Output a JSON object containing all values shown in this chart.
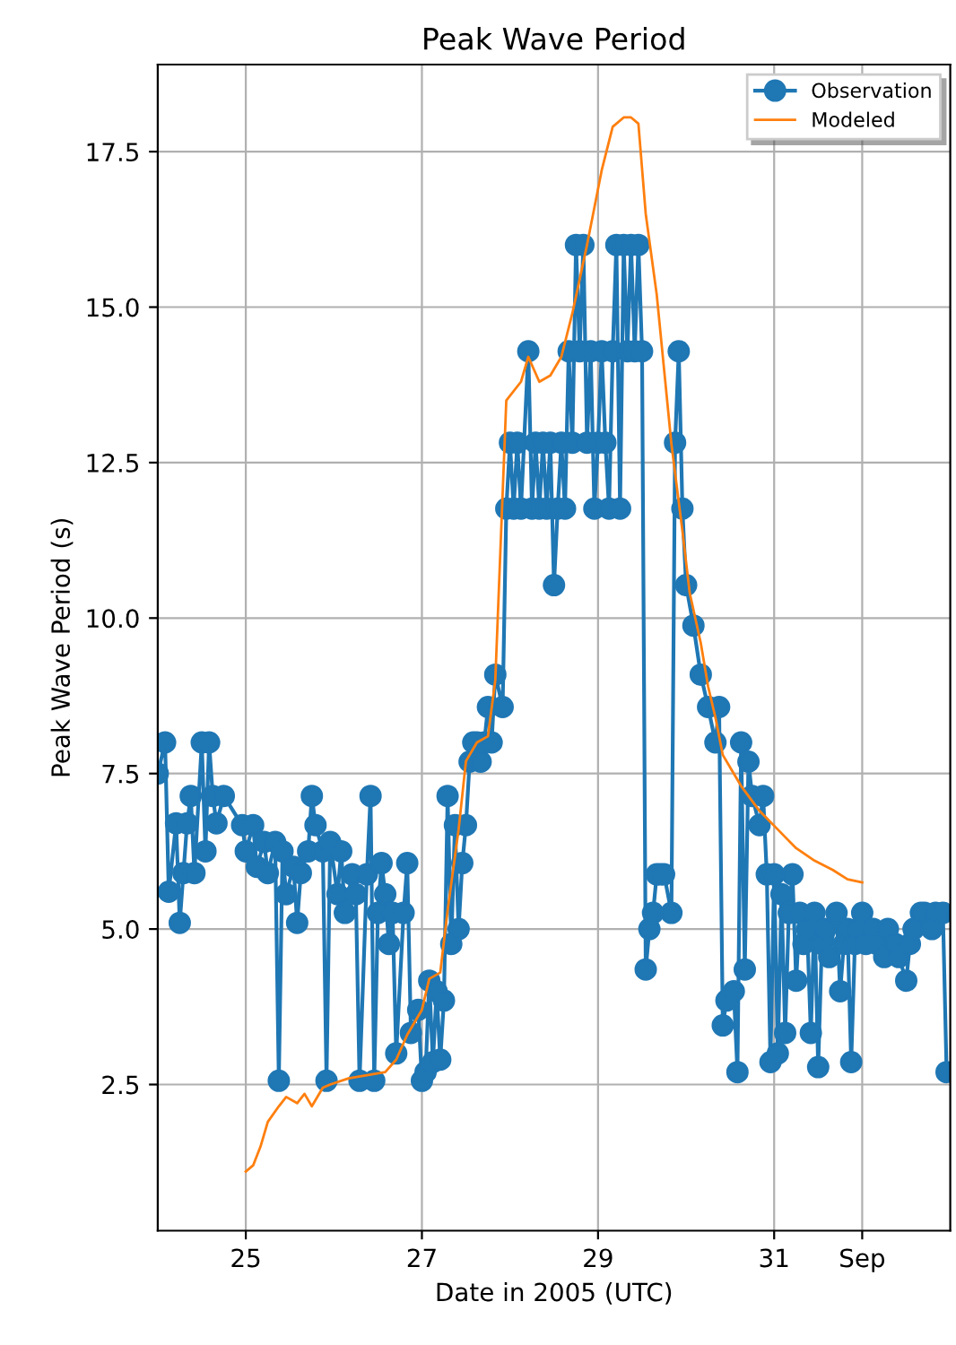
{
  "chart_data": {
    "type": "line",
    "title": "Peak Wave Period",
    "xlabel": "Date in 2005 (UTC)",
    "ylabel": "Peak Wave Period (s)",
    "xlim": [
      "2005-08-24T00:00",
      "2005-09-02T00:00"
    ],
    "ylim": [
      0.15,
      18.9
    ],
    "xticks": [
      {
        "value": "2005-08-25",
        "label": "25"
      },
      {
        "value": "2005-08-27",
        "label": "27"
      },
      {
        "value": "2005-08-29",
        "label": "29"
      },
      {
        "value": "2005-08-31",
        "label": "31"
      },
      {
        "value": "2005-09-01",
        "label": "Sep"
      }
    ],
    "yticks": [
      2.5,
      {
        "value": 5,
        "label": "5.0"
      },
      7.5,
      {
        "value": 10,
        "label": "10.0"
      },
      12.5,
      {
        "value": 15,
        "label": "15.0"
      },
      17.5
    ],
    "grid": true,
    "legend": "top right",
    "series": [
      {
        "name": "Observation",
        "color": "#1f77b4",
        "marker": "circle",
        "line_style": "solid",
        "x": [
          "2005-08-24T00:00",
          "2005-08-24T02:00",
          "2005-08-24T03:00",
          "2005-08-24T05:00",
          "2005-08-24T06:00",
          "2005-08-24T07:00",
          "2005-08-24T08:00",
          "2005-08-24T09:00",
          "2005-08-24T10:00",
          "2005-08-24T12:00",
          "2005-08-24T13:00",
          "2005-08-24T14:00",
          "2005-08-24T15:00",
          "2005-08-24T16:00",
          "2005-08-24T18:00",
          "2005-08-24T23:00",
          "2005-08-25T00:00",
          "2005-08-25T02:00",
          "2005-08-25T03:00",
          "2005-08-25T05:00",
          "2005-08-25T06:00",
          "2005-08-25T08:00",
          "2005-08-25T09:00",
          "2005-08-25T10:00",
          "2005-08-25T11:00",
          "2005-08-25T13:00",
          "2005-08-25T14:00",
          "2005-08-25T15:00",
          "2005-08-25T17:00",
          "2005-08-25T18:00",
          "2005-08-25T19:00",
          "2005-08-25T21:00",
          "2005-08-25T22:00",
          "2005-08-25T23:00",
          "2005-08-26T01:00",
          "2005-08-26T02:00",
          "2005-08-26T03:00",
          "2005-08-26T05:00",
          "2005-08-26T06:00",
          "2005-08-26T07:00",
          "2005-08-26T09:00",
          "2005-08-26T10:00",
          "2005-08-26T11:00",
          "2005-08-26T12:00",
          "2005-08-26T13:00",
          "2005-08-26T14:00",
          "2005-08-26T15:00",
          "2005-08-26T16:00",
          "2005-08-26T17:00",
          "2005-08-26T19:00",
          "2005-08-26T20:00",
          "2005-08-26T21:00",
          "2005-08-26T23:00",
          "2005-08-27T00:00",
          "2005-08-27T01:00",
          "2005-08-27T02:00",
          "2005-08-27T03:00",
          "2005-08-27T04:00",
          "2005-08-27T05:00",
          "2005-08-27T06:00",
          "2005-08-27T07:00",
          "2005-08-27T08:00",
          "2005-08-27T09:00",
          "2005-08-27T10:00",
          "2005-08-27T11:00",
          "2005-08-27T12:00",
          "2005-08-27T13:00",
          "2005-08-27T14:00",
          "2005-08-27T15:00",
          "2005-08-27T16:00",
          "2005-08-27T17:00",
          "2005-08-27T18:00",
          "2005-08-27T19:00",
          "2005-08-27T20:00",
          "2005-08-27T22:00",
          "2005-08-27T23:00",
          "2005-08-28T00:00",
          "2005-08-28T01:00",
          "2005-08-28T02:00",
          "2005-08-28T03:00",
          "2005-08-28T05:00",
          "2005-08-28T06:00",
          "2005-08-28T07:00",
          "2005-08-28T08:00",
          "2005-08-28T09:00",
          "2005-08-28T10:00",
          "2005-08-28T11:00",
          "2005-08-28T12:00",
          "2005-08-28T13:00",
          "2005-08-28T14:00",
          "2005-08-28T15:00",
          "2005-08-28T16:00",
          "2005-08-28T17:00",
          "2005-08-28T18:00",
          "2005-08-28T19:00",
          "2005-08-28T20:00",
          "2005-08-28T21:00",
          "2005-08-28T22:00",
          "2005-08-28T23:00",
          "2005-08-29T00:00",
          "2005-08-29T01:00",
          "2005-08-29T02:00",
          "2005-08-29T03:00",
          "2005-08-29T04:00",
          "2005-08-29T05:00",
          "2005-08-29T06:00",
          "2005-08-29T07:00",
          "2005-08-29T08:00",
          "2005-08-29T09:00",
          "2005-08-29T10:00",
          "2005-08-29T11:00",
          "2005-08-29T12:00",
          "2005-08-29T13:00",
          "2005-08-29T14:00",
          "2005-08-29T15:00",
          "2005-08-29T16:00",
          "2005-08-29T17:00",
          "2005-08-29T18:00",
          "2005-08-29T20:00",
          "2005-08-29T21:00",
          "2005-08-29T22:00",
          "2005-08-29T23:00",
          "2005-08-30T00:00",
          "2005-08-30T02:00",
          "2005-08-30T04:00",
          "2005-08-30T06:00",
          "2005-08-30T08:00",
          "2005-08-30T09:00",
          "2005-08-30T10:00",
          "2005-08-30T11:00",
          "2005-08-30T13:00",
          "2005-08-30T14:00",
          "2005-08-30T15:00",
          "2005-08-30T16:00",
          "2005-08-30T17:00",
          "2005-08-30T18:00",
          "2005-08-30T20:00",
          "2005-08-30T21:00",
          "2005-08-30T22:00",
          "2005-08-30T23:00",
          "2005-08-31T00:00",
          "2005-08-31T01:00",
          "2005-08-31T02:00",
          "2005-08-31T03:00",
          "2005-08-31T04:00",
          "2005-08-31T05:00",
          "2005-08-31T06:00",
          "2005-08-31T07:00",
          "2005-08-31T08:00",
          "2005-08-31T09:00",
          "2005-08-31T10:00",
          "2005-08-31T11:00",
          "2005-08-31T12:00",
          "2005-08-31T13:00",
          "2005-08-31T14:00",
          "2005-08-31T15:00",
          "2005-08-31T17:00",
          "2005-08-31T18:00",
          "2005-08-31T19:00",
          "2005-08-31T20:00",
          "2005-08-31T21:00",
          "2005-08-31T22:00",
          "2005-08-31T23:00",
          "2005-09-01T00:00",
          "2005-09-01T01:00",
          "2005-09-01T03:00",
          "2005-09-01T04:00",
          "2005-09-01T06:00",
          "2005-09-01T07:00",
          "2005-09-01T09:00",
          "2005-09-01T10:00",
          "2005-09-01T12:00",
          "2005-09-01T13:00",
          "2005-09-01T14:00",
          "2005-09-01T16:00",
          "2005-09-01T17:00",
          "2005-09-01T19:00",
          "2005-09-01T20:00",
          "2005-09-01T22:00",
          "2005-09-01T23:00"
        ],
        "values": [
          7.5,
          8.0,
          5.6,
          6.7,
          5.1,
          5.9,
          6.7,
          7.14,
          5.9,
          8.0,
          6.25,
          8.0,
          7.14,
          6.7,
          7.14,
          6.67,
          6.25,
          6.67,
          6.0,
          6.4,
          5.9,
          6.4,
          2.56,
          6.25,
          5.56,
          6.0,
          5.1,
          5.9,
          6.25,
          7.14,
          6.67,
          6.25,
          2.56,
          6.4,
          5.56,
          6.25,
          5.26,
          5.88,
          5.56,
          2.56,
          5.88,
          7.14,
          2.56,
          5.26,
          6.06,
          5.56,
          4.76,
          5.26,
          3.0,
          5.26,
          6.06,
          3.33,
          3.7,
          2.56,
          2.7,
          4.17,
          2.86,
          4.0,
          2.9,
          3.85,
          7.14,
          4.76,
          6.67,
          5.0,
          6.06,
          6.67,
          7.69,
          8.0,
          8.0,
          7.69,
          8.0,
          8.57,
          8.0,
          9.09,
          8.57,
          11.76,
          12.82,
          11.76,
          12.82,
          11.76,
          14.29,
          11.76,
          12.82,
          11.76,
          12.82,
          11.76,
          12.82,
          10.53,
          11.76,
          12.82,
          11.76,
          14.29,
          12.82,
          16.0,
          14.29,
          16.0,
          12.82,
          14.29,
          11.76,
          12.82,
          14.29,
          12.82,
          11.76,
          14.29,
          16.0,
          11.76,
          16.0,
          14.29,
          16.0,
          14.29,
          16.0,
          14.29,
          4.35,
          5.0,
          5.26,
          5.88,
          5.88,
          5.88,
          5.26,
          12.82,
          14.29,
          11.76,
          10.53,
          9.88,
          9.09,
          8.57,
          8.0,
          8.57,
          3.45,
          3.85,
          4.0,
          2.7,
          8.0,
          4.35,
          7.69,
          7.14,
          6.67,
          7.14,
          5.88,
          2.86,
          5.88,
          3.0,
          5.56,
          3.33,
          5.26,
          5.88,
          4.17,
          5.26,
          4.76,
          5.0,
          3.33,
          5.26,
          2.78,
          4.76,
          5.0,
          4.55,
          5.26,
          4.0,
          4.76,
          5.0,
          2.86,
          4.76,
          5.0,
          5.26,
          4.76,
          5.0,
          4.76,
          4.55,
          5.0,
          4.76,
          4.55,
          4.17,
          4.76,
          5.0,
          5.26,
          5.26,
          5.0,
          5.26,
          5.26,
          2.7
        ]
      },
      {
        "name": "Modeled",
        "color": "#ff7f0e",
        "marker": "none",
        "line_style": "solid",
        "x": [
          "2005-08-25T00:00",
          "2005-08-25T02:00",
          "2005-08-25T04:00",
          "2005-08-25T06:00",
          "2005-08-25T09:00",
          "2005-08-25T11:00",
          "2005-08-25T14:00",
          "2005-08-25T16:00",
          "2005-08-25T18:00",
          "2005-08-25T21:00",
          "2005-08-25T23:00",
          "2005-08-26T04:00",
          "2005-08-26T09:00",
          "2005-08-26T14:00",
          "2005-08-26T17:00",
          "2005-08-26T20:00",
          "2005-08-27T00:00",
          "2005-08-27T02:00",
          "2005-08-27T05:00",
          "2005-08-27T07:00",
          "2005-08-27T10:00",
          "2005-08-27T12:00",
          "2005-08-27T15:00",
          "2005-08-27T18:00",
          "2005-08-27T20:00",
          "2005-08-27T22:00",
          "2005-08-27T23:00",
          "2005-08-28T03:00",
          "2005-08-28T05:00",
          "2005-08-28T08:00",
          "2005-08-28T11:00",
          "2005-08-28T14:00",
          "2005-08-28T17:00",
          "2005-08-28T21:00",
          "2005-08-29T01:00",
          "2005-08-29T04:00",
          "2005-08-29T07:00",
          "2005-08-29T09:00",
          "2005-08-29T11:00",
          "2005-08-29T13:00",
          "2005-08-29T16:00",
          "2005-08-29T18:00",
          "2005-08-29T20:00",
          "2005-08-29T23:00",
          "2005-08-30T01:00",
          "2005-08-30T04:00",
          "2005-08-30T06:00",
          "2005-08-30T08:00",
          "2005-08-30T10:00",
          "2005-08-30T13:00",
          "2005-08-30T15:00",
          "2005-08-30T20:00",
          "2005-08-31T01:00",
          "2005-08-31T06:00",
          "2005-08-31T11:00",
          "2005-08-31T16:00",
          "2005-08-31T20:00",
          "2005-09-01T00:00"
        ],
        "values": [
          1.1,
          1.2,
          1.5,
          1.9,
          2.15,
          2.3,
          2.2,
          2.35,
          2.15,
          2.45,
          2.5,
          2.6,
          2.65,
          2.7,
          2.9,
          3.3,
          3.7,
          4.2,
          4.3,
          5.3,
          6.6,
          7.7,
          8.0,
          8.1,
          9.0,
          12.0,
          13.5,
          13.8,
          14.2,
          13.8,
          13.9,
          14.2,
          14.9,
          16.0,
          17.2,
          17.9,
          18.05,
          18.05,
          17.95,
          16.5,
          15.2,
          14.0,
          12.8,
          11.4,
          10.4,
          9.6,
          8.9,
          8.4,
          7.8,
          7.5,
          7.3,
          6.9,
          6.6,
          6.3,
          6.1,
          5.95,
          5.8,
          5.75
        ]
      }
    ]
  }
}
